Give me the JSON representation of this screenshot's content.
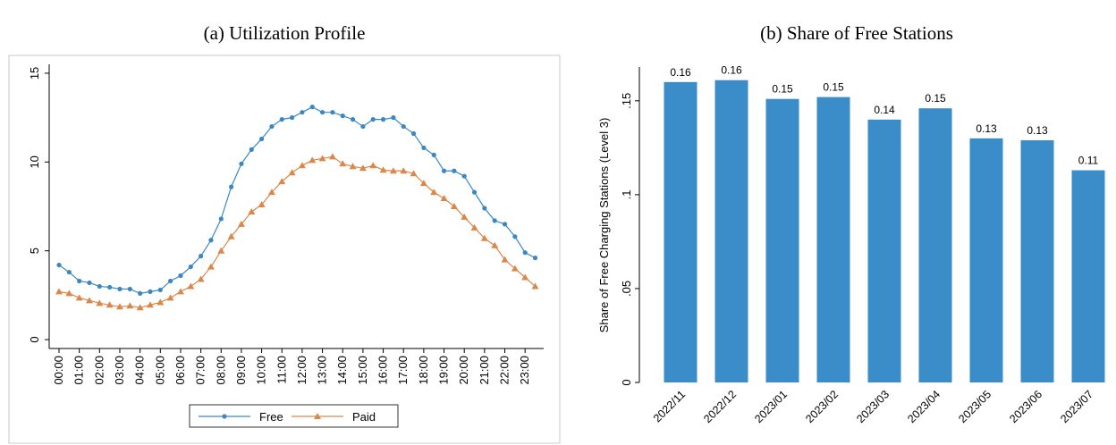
{
  "chart_data": [
    {
      "type": "line",
      "title": "(a) Utilization Profile",
      "categories": [
        "00:00",
        null,
        "01:00",
        null,
        "02:00",
        null,
        "03:00",
        null,
        "04:00",
        null,
        "05:00",
        null,
        "06:00",
        null,
        "07:00",
        null,
        "08:00",
        null,
        "09:00",
        null,
        "10:00",
        null,
        "11:00",
        null,
        "12:00",
        null,
        "13:00",
        null,
        "14:00",
        null,
        "15:00",
        null,
        "16:00",
        null,
        "17:00",
        null,
        "18:00",
        null,
        "19:00",
        null,
        "20:00",
        null,
        "21:00",
        null,
        "22:00",
        null,
        "23:00",
        null
      ],
      "series": [
        {
          "name": "Free",
          "color": "#3a87c3",
          "marker": "circle",
          "values": [
            4.2,
            3.8,
            3.3,
            3.2,
            3.0,
            2.95,
            2.85,
            2.85,
            2.6,
            2.7,
            2.8,
            3.3,
            3.6,
            4.1,
            4.7,
            5.6,
            6.8,
            8.6,
            9.9,
            10.7,
            11.3,
            12.0,
            12.4,
            12.5,
            12.8,
            13.1,
            12.8,
            12.8,
            12.6,
            12.4,
            12.0,
            12.4,
            12.4,
            12.5,
            12.0,
            11.6,
            10.8,
            10.4,
            9.5,
            9.5,
            9.2,
            8.3,
            7.4,
            6.7,
            6.5,
            5.8,
            4.9,
            4.6
          ]
        },
        {
          "name": "Paid",
          "color": "#d9874a",
          "marker": "triangle",
          "values": [
            2.7,
            2.6,
            2.35,
            2.2,
            2.05,
            1.95,
            1.85,
            1.9,
            1.8,
            1.95,
            2.1,
            2.35,
            2.7,
            3.0,
            3.4,
            4.1,
            5.0,
            5.8,
            6.5,
            7.2,
            7.6,
            8.3,
            8.9,
            9.4,
            9.8,
            10.1,
            10.2,
            10.3,
            9.9,
            9.75,
            9.65,
            9.8,
            9.55,
            9.5,
            9.5,
            9.35,
            8.8,
            8.3,
            7.95,
            7.5,
            6.9,
            6.3,
            5.7,
            5.3,
            4.5,
            4.0,
            3.5,
            3.0
          ]
        }
      ],
      "ylim": [
        -0.5,
        15.5
      ],
      "yticks": [
        0,
        5,
        10,
        15
      ],
      "legend": "bottom"
    },
    {
      "type": "bar",
      "title": "(b) Share of Free Stations",
      "y_label": "Share of Free Charging Stations (Level 3)",
      "categories": [
        "2022/11",
        "2022/12",
        "2023/01",
        "2023/02",
        "2023/03",
        "2023/04",
        "2023/05",
        "2023/06",
        "2023/07"
      ],
      "values": [
        0.16,
        0.161,
        0.151,
        0.152,
        0.14,
        0.146,
        0.13,
        0.129,
        0.113
      ],
      "value_labels": [
        "0.16",
        "0.16",
        "0.15",
        "0.15",
        "0.14",
        "0.15",
        "0.13",
        "0.13",
        "0.11"
      ],
      "color": "#3a8dc8",
      "ylim": [
        0,
        0.168
      ],
      "yticks": [
        0,
        {
          "value": 0.05,
          "label": ".05"
        },
        {
          "value": 0.1,
          "label": ".1"
        },
        {
          "value": 0.15,
          "label": ".15"
        }
      ]
    }
  ]
}
